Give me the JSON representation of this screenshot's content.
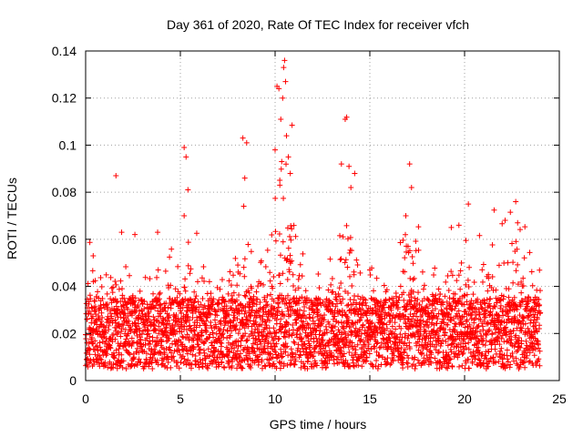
{
  "chart_data": {
    "type": "scatter",
    "title": "Day 361 of 2020, Rate Of TEC Index for receiver vfch",
    "xlabel": "GPS time / hours",
    "ylabel": "ROTI / TECUs",
    "xlim": [
      0,
      25
    ],
    "ylim": [
      0,
      0.14
    ],
    "xticks": [
      0,
      5,
      10,
      15,
      20,
      25
    ],
    "xtick_labels": [
      "0",
      "5",
      "10",
      "15",
      "20",
      "25"
    ],
    "yticks": [
      0,
      0.02,
      0.04,
      0.06,
      0.08,
      0.1,
      0.12,
      0.14
    ],
    "ytick_labels": [
      "0",
      "0.02",
      "0.04",
      "0.06",
      "0.08",
      "0.1",
      "0.12",
      "0.14"
    ],
    "grid": true,
    "marker": "+",
    "color": "#ff0000",
    "data_x_range": [
      0,
      24
    ],
    "dense_band": [
      0.005,
      0.035
    ],
    "series": [
      {
        "name": "ROTI",
        "x": [
          1.6,
          0.4,
          1.9,
          2.6,
          3.8,
          5.2,
          5.3,
          5.4,
          5.2,
          8.3,
          8.5,
          8.4,
          10.0,
          10.1,
          10.2,
          10.3,
          10.4,
          10.5,
          10.45,
          10.55,
          10.6,
          10.7,
          10.8,
          10.35,
          10.25,
          13.5,
          13.7,
          13.9,
          14.0,
          14.2,
          17.1,
          17.2,
          16.9,
          20.2,
          22.7,
          22.8,
          19.3,
          19.7
        ],
        "y": [
          0.087,
          0.053,
          0.063,
          0.062,
          0.063,
          0.099,
          0.095,
          0.081,
          0.07,
          0.103,
          0.101,
          0.086,
          0.098,
          0.125,
          0.124,
          0.111,
          0.12,
          0.136,
          0.133,
          0.127,
          0.104,
          0.095,
          0.088,
          0.093,
          0.083,
          0.092,
          0.111,
          0.091,
          0.082,
          0.088,
          0.092,
          0.082,
          0.07,
          0.075,
          0.076,
          0.067,
          0.065,
          0.066
        ]
      }
    ]
  }
}
